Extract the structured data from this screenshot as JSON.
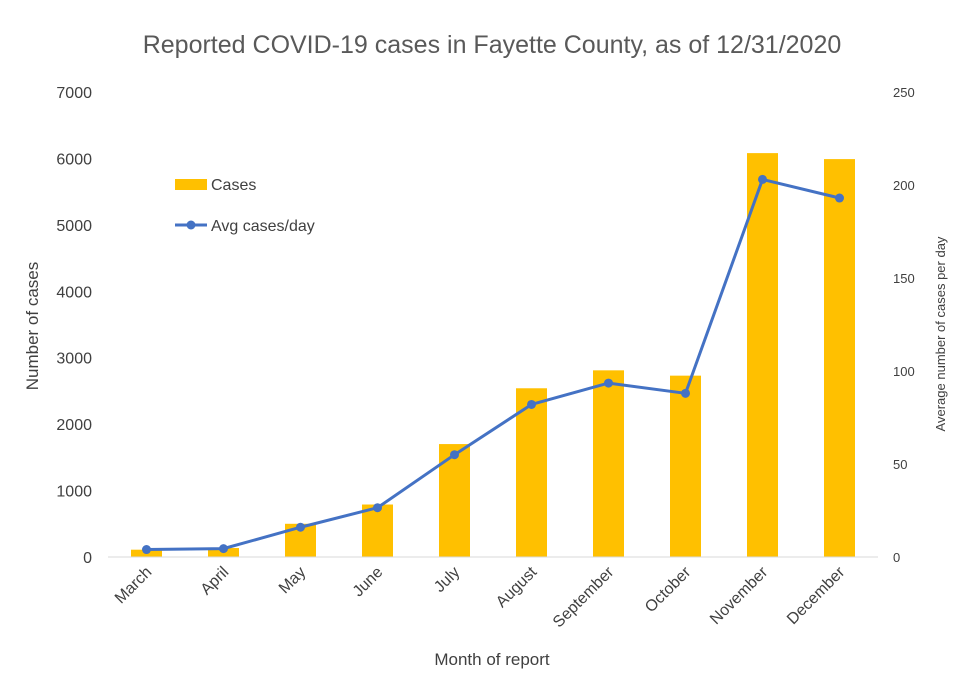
{
  "chart_data": {
    "type": "bar",
    "title": "Reported COVID-19 cases in Fayette County, as of 12/31/2020",
    "xlabel": "Month of report",
    "ylabel": "Number of cases",
    "y2label": "Average number of cases per day",
    "categories": [
      "March",
      "April",
      "May",
      "June",
      "July",
      "August",
      "September",
      "October",
      "November",
      "December"
    ],
    "series": [
      {
        "name": "Cases",
        "type": "bar",
        "axis": "left",
        "color": "#FFC000",
        "values": [
          110,
          135,
          500,
          790,
          1700,
          2540,
          2810,
          2730,
          6080,
          5990
        ]
      },
      {
        "name": "Avg cases/day",
        "type": "line",
        "axis": "right",
        "color": "#4472C4",
        "values": [
          4,
          4.5,
          16,
          26.5,
          55,
          82,
          93.5,
          88,
          203,
          193
        ]
      }
    ],
    "ylim": [
      0,
      7000
    ],
    "yticks": [
      0,
      1000,
      2000,
      3000,
      4000,
      5000,
      6000,
      7000
    ],
    "y2lim": [
      0,
      250
    ],
    "y2ticks": [
      0,
      50,
      100,
      150,
      200,
      250
    ],
    "grid": false,
    "legend_position": "upper-left inside"
  }
}
